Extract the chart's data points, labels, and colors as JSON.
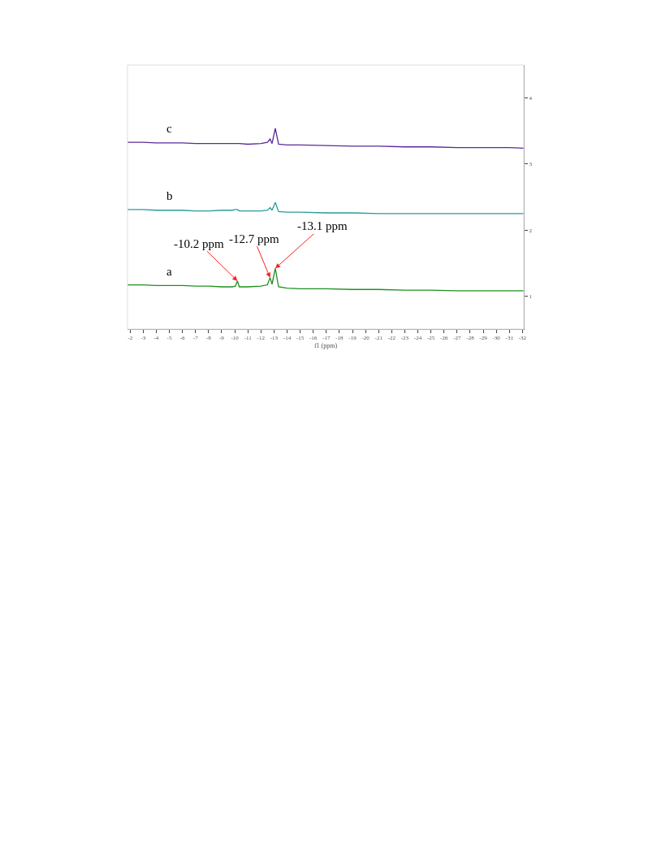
{
  "chart_data": {
    "type": "line",
    "xlabel": "f1 (ppm)",
    "x": [
      -1.8,
      -3,
      -4,
      -5,
      -6,
      -7,
      -8,
      -9,
      -9.8,
      -10.05,
      -10.2,
      -10.35,
      -11,
      -12,
      -12.5,
      -12.7,
      -12.85,
      -13.1,
      -13.35,
      -14,
      -15,
      -17,
      -19,
      -21,
      -23,
      -25,
      -27,
      -29,
      -31,
      -32.1
    ],
    "series": [
      {
        "name": "a",
        "color": "#1f8f1f",
        "values": [
          1.17,
          1.17,
          1.16,
          1.16,
          1.16,
          1.15,
          1.15,
          1.14,
          1.14,
          1.15,
          1.23,
          1.14,
          1.14,
          1.15,
          1.17,
          1.28,
          1.18,
          1.42,
          1.14,
          1.12,
          1.11,
          1.11,
          1.1,
          1.1,
          1.09,
          1.09,
          1.08,
          1.08,
          1.08,
          1.08
        ]
      },
      {
        "name": "b",
        "color": "#2a9a9a",
        "values": [
          2.31,
          2.31,
          2.3,
          2.3,
          2.3,
          2.29,
          2.29,
          2.3,
          2.3,
          2.31,
          2.31,
          2.29,
          2.29,
          2.29,
          2.3,
          2.34,
          2.3,
          2.42,
          2.28,
          2.27,
          2.27,
          2.26,
          2.26,
          2.25,
          2.25,
          2.25,
          2.25,
          2.25,
          2.25,
          2.25
        ]
      },
      {
        "name": "c",
        "color": "#5a2a9a",
        "values": [
          3.33,
          3.33,
          3.32,
          3.32,
          3.32,
          3.31,
          3.31,
          3.31,
          3.31,
          3.31,
          3.31,
          3.31,
          3.3,
          3.31,
          3.33,
          3.38,
          3.31,
          3.54,
          3.3,
          3.29,
          3.29,
          3.28,
          3.27,
          3.27,
          3.26,
          3.26,
          3.25,
          3.25,
          3.25,
          3.24
        ]
      }
    ],
    "annotations": [
      {
        "text": "-10.2 ppm",
        "x": -10.2,
        "y": 1.23
      },
      {
        "text": "-12.7 ppm",
        "x": -12.7,
        "y": 1.28
      },
      {
        "text": "-13.1 ppm",
        "x": -13.1,
        "y": 1.42
      }
    ],
    "xlim": [
      -1.8,
      -32.1
    ],
    "xticks": [
      -2,
      -3,
      -4,
      -5,
      -6,
      -7,
      -8,
      -9,
      -10,
      -11,
      -12,
      -13,
      -14,
      -15,
      -16,
      -17,
      -18,
      -19,
      -20,
      -21,
      -22,
      -23,
      -24,
      -25,
      -26,
      -27,
      -28,
      -29,
      -30,
      -31,
      -32
    ],
    "ylim": [
      0.5,
      4.5
    ],
    "yticks": [
      1,
      2,
      3,
      4
    ],
    "legend": false,
    "marker": "none",
    "line_style": "solid"
  }
}
